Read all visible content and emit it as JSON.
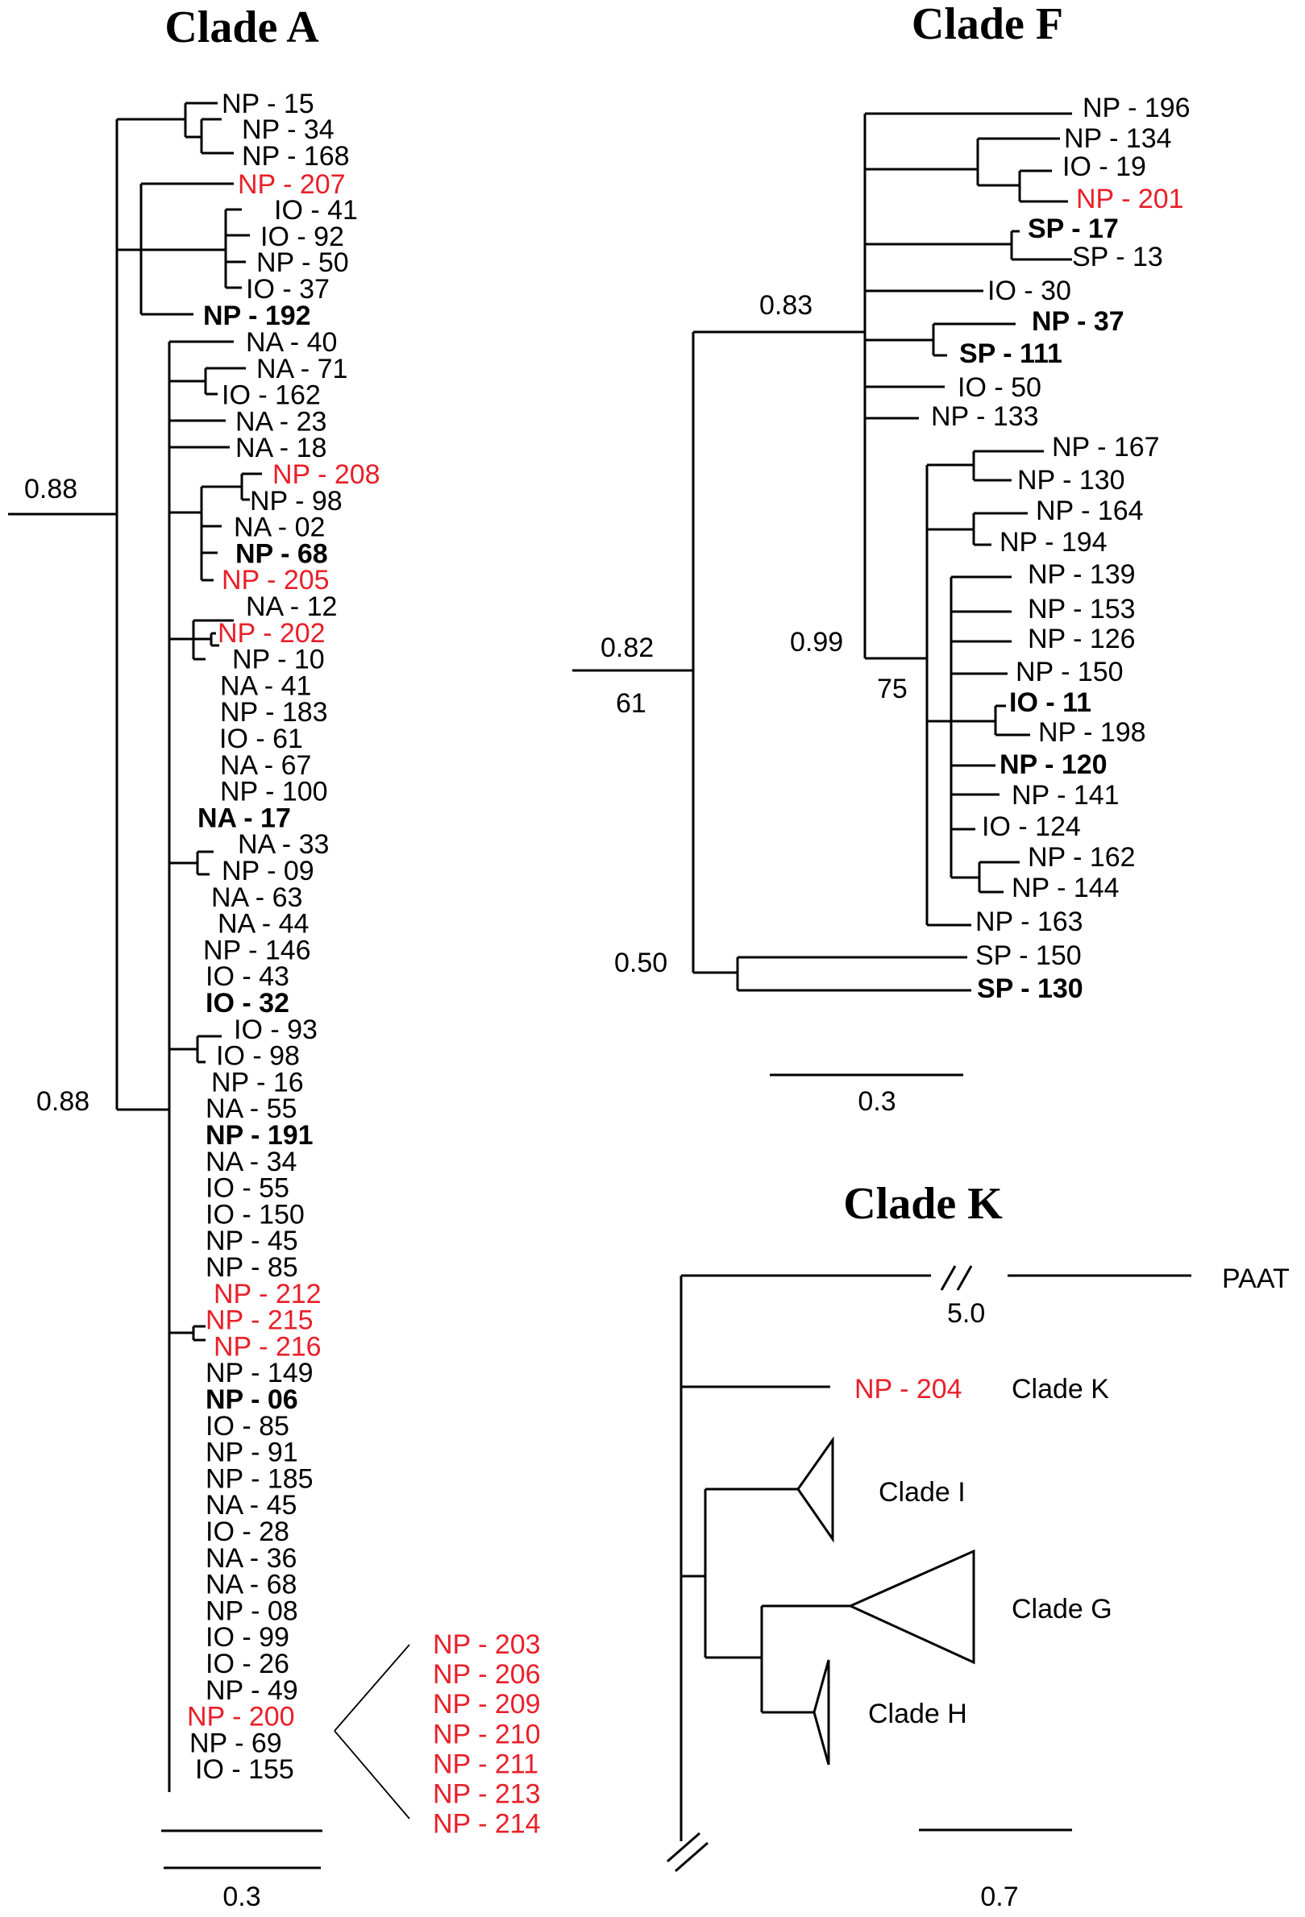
{
  "titles": {
    "a": "Clade A",
    "f": "Clade F",
    "k": "Clade K"
  },
  "colors": {
    "red": "#e8202a",
    "black": "#000000"
  },
  "clade_a": {
    "support": {
      "root": "0.88",
      "main": "0.88"
    },
    "scale": "0.3",
    "group1": [
      {
        "text": "NP - 15"
      },
      {
        "text": "NP - 34"
      },
      {
        "text": "NP - 168"
      },
      {
        "text": "NP - 207",
        "red": true
      },
      {
        "text": "IO - 41"
      },
      {
        "text": "IO - 92"
      },
      {
        "text": "NP - 50"
      },
      {
        "text": "IO - 37"
      },
      {
        "text": "NP - 192",
        "bold": true
      }
    ],
    "group2": [
      {
        "text": "NA - 40"
      },
      {
        "text": "NA - 71"
      },
      {
        "text": "IO - 162"
      },
      {
        "text": "NA - 23"
      },
      {
        "text": "NA - 18"
      },
      {
        "text": "NP - 208",
        "red": true
      },
      {
        "text": "NP - 98"
      },
      {
        "text": "NA - 02"
      },
      {
        "text": "NP - 68",
        "bold": true
      },
      {
        "text": "NP - 205",
        "red": true
      },
      {
        "text": "NA - 12"
      },
      {
        "text": "NP - 202",
        "red": true
      },
      {
        "text": "NP - 10"
      },
      {
        "text": "NA - 41"
      },
      {
        "text": "NP - 183"
      },
      {
        "text": "IO - 61"
      },
      {
        "text": "NA - 67"
      },
      {
        "text": "NP - 100"
      },
      {
        "text": "NA - 17",
        "bold": true
      },
      {
        "text": "NA - 33"
      },
      {
        "text": "NP - 09"
      },
      {
        "text": "NA - 63"
      },
      {
        "text": "NA - 44"
      },
      {
        "text": "NP - 146"
      },
      {
        "text": "IO - 43"
      },
      {
        "text": "IO - 32",
        "bold": true
      },
      {
        "text": "IO - 93"
      },
      {
        "text": "IO - 98"
      },
      {
        "text": "NP - 16"
      },
      {
        "text": "NA - 55"
      },
      {
        "text": "NP - 191",
        "bold": true
      },
      {
        "text": "NA - 34"
      },
      {
        "text": "IO - 55"
      },
      {
        "text": "IO - 150"
      },
      {
        "text": "NP - 45"
      },
      {
        "text": "NP - 85"
      },
      {
        "text": "NP - 212",
        "red": true
      },
      {
        "text": "NP - 215",
        "red": true
      },
      {
        "text": "NP - 216",
        "red": true
      },
      {
        "text": "NP - 149"
      },
      {
        "text": "NP - 06",
        "bold": true
      },
      {
        "text": "IO - 85"
      },
      {
        "text": "NP - 91"
      },
      {
        "text": "NP - 185"
      },
      {
        "text": "NA - 45"
      },
      {
        "text": "IO - 28"
      },
      {
        "text": "NA - 36"
      },
      {
        "text": "NA - 68"
      },
      {
        "text": "NP - 08"
      },
      {
        "text": "IO - 99"
      },
      {
        "text": "IO - 26"
      },
      {
        "text": "NP - 49"
      },
      {
        "text": "NP - 200",
        "red": true
      },
      {
        "text": "NP - 69"
      },
      {
        "text": "IO - 155"
      }
    ],
    "expanded": [
      "NP - 203",
      "NP - 206",
      "NP - 209",
      "NP - 210",
      "NP - 211",
      "NP - 213",
      "NP - 214"
    ]
  },
  "clade_f": {
    "support": {
      "s083": "0.83",
      "s082": "0.82",
      "s61": "61",
      "s099": "0.99",
      "s75": "75",
      "s050": "0.50"
    },
    "scale": "0.3",
    "leaves": [
      {
        "text": "NP - 196"
      },
      {
        "text": "NP - 134"
      },
      {
        "text": "IO - 19"
      },
      {
        "text": "NP - 201",
        "red": true
      },
      {
        "text": "SP - 17",
        "bold": true
      },
      {
        "text": "SP - 13"
      },
      {
        "text": "IO - 30"
      },
      {
        "text": "NP - 37",
        "bold": true
      },
      {
        "text": "SP - 111",
        "bold": true
      },
      {
        "text": "IO - 50"
      },
      {
        "text": "NP - 133"
      },
      {
        "text": "NP - 167"
      },
      {
        "text": "NP - 130"
      },
      {
        "text": "NP - 164"
      },
      {
        "text": "NP - 194"
      },
      {
        "text": "NP - 139"
      },
      {
        "text": "NP - 153"
      },
      {
        "text": "NP - 126"
      },
      {
        "text": "NP - 150"
      },
      {
        "text": "IO - 11",
        "bold": true
      },
      {
        "text": "NP - 198"
      },
      {
        "text": "NP - 120",
        "bold": true
      },
      {
        "text": "NP - 141"
      },
      {
        "text": "IO - 124"
      },
      {
        "text": "NP - 162"
      },
      {
        "text": "NP - 144"
      },
      {
        "text": "NP - 163"
      },
      {
        "text": "SP - 150"
      },
      {
        "text": "SP - 130",
        "bold": true
      }
    ]
  },
  "clade_k": {
    "paat": "PAAT",
    "paat_len": "5.0",
    "np204": "NP - 204",
    "clade_k_lbl": "Clade K",
    "clade_i": "Clade I",
    "clade_g": "Clade G",
    "clade_h": "Clade H",
    "scale": "0.7"
  }
}
